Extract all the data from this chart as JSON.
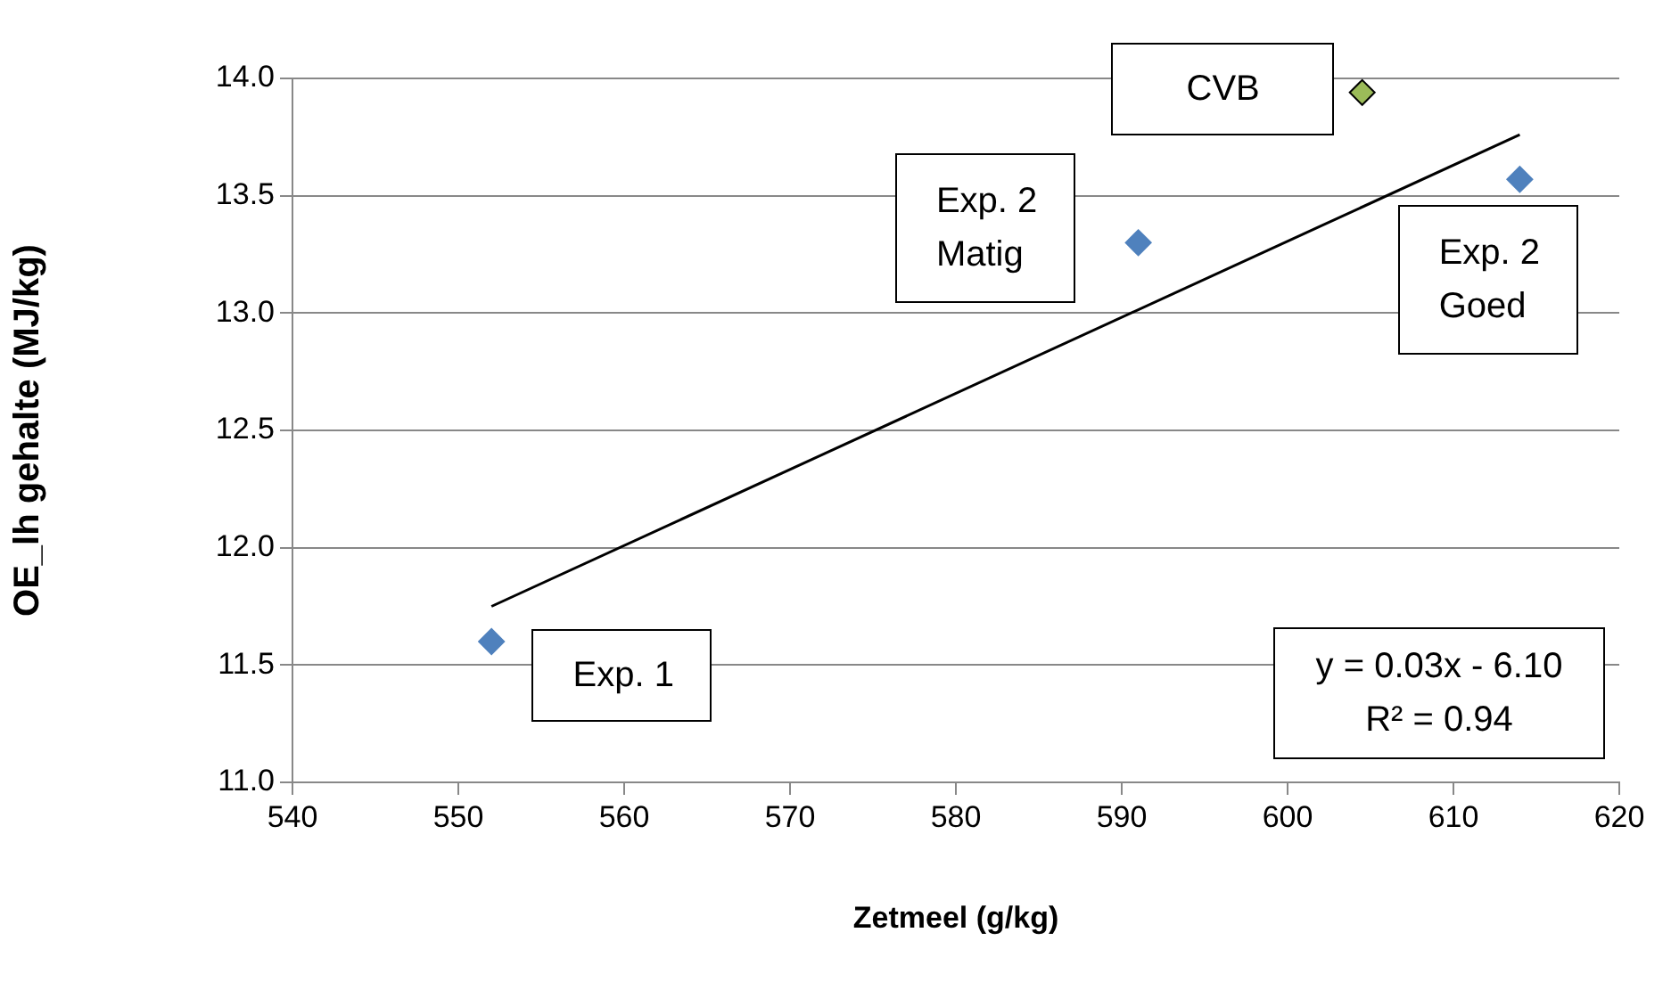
{
  "chart_data": {
    "type": "scatter",
    "xlabel": "Zetmeel (g/kg)",
    "ylabel": "OE_lh gehalte (MJ/kg)",
    "xlim": [
      540,
      620
    ],
    "xticks": [
      540,
      550,
      560,
      570,
      580,
      590,
      600,
      610,
      620
    ],
    "ylim": [
      11,
      14
    ],
    "yticks": [
      {
        "value": 11,
        "label": "11.0"
      },
      {
        "value": 11.5,
        "label": "11.5"
      },
      {
        "value": 12,
        "label": "12.0"
      },
      {
        "value": 12.5,
        "label": "12.5"
      },
      {
        "value": 13,
        "label": "13.0"
      },
      {
        "value": 13.5,
        "label": "13.5"
      },
      {
        "value": 14,
        "label": "14.0"
      }
    ],
    "grid": "y",
    "legend": false,
    "marker": "diamond",
    "series": [
      {
        "type": "scatter",
        "color": "#4f81bd",
        "x": [
          552,
          591,
          614
        ],
        "values": [
          11.6,
          13.3,
          13.57
        ]
      },
      {
        "type": "scatter",
        "color": "#9bbb59",
        "x": [
          604.5
        ],
        "values": [
          13.94
        ]
      },
      {
        "type": "line",
        "color": "#000000",
        "marker": "none",
        "x": [
          552,
          614
        ],
        "values": [
          11.75,
          13.76
        ]
      }
    ],
    "annotations": [
      {
        "text": "Exp. 1",
        "x": 552,
        "y": 11.6
      },
      {
        "text": "Exp. 2\nMatig",
        "x": 591,
        "y": 13.3
      },
      {
        "text": "CVB",
        "x": 604.5,
        "y": 13.94
      },
      {
        "text": "Exp. 2\nGoed",
        "x": 614,
        "y": 13.57
      },
      "y = 0.03x - 6.10\nR² = 0.94"
    ]
  }
}
